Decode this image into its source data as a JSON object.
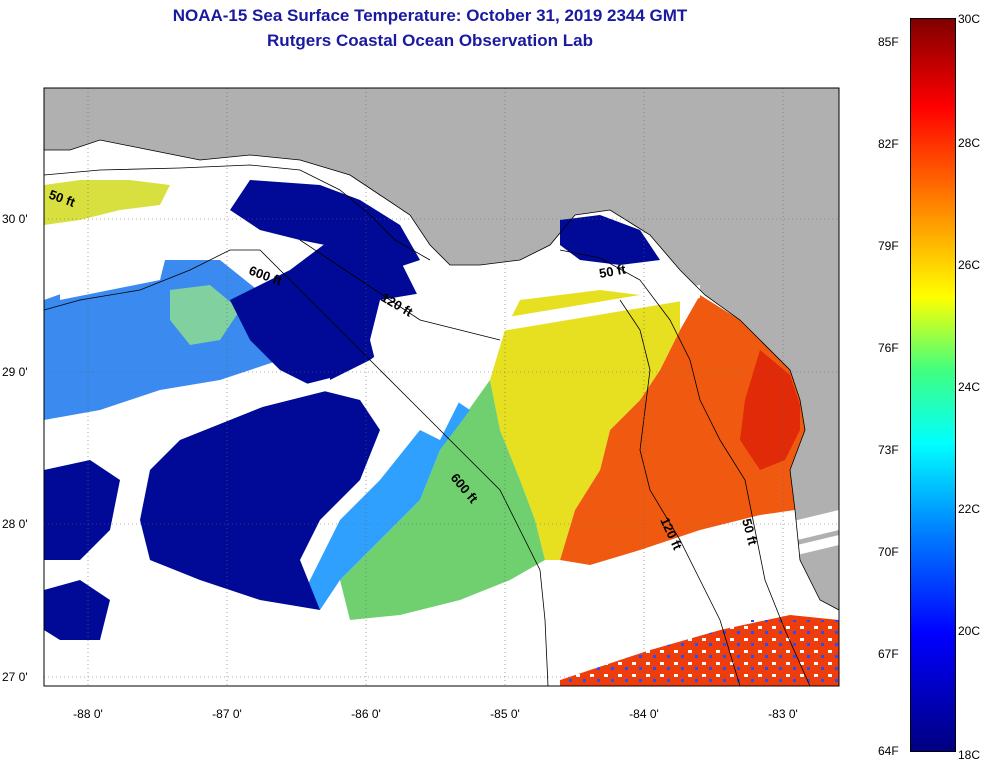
{
  "title": {
    "line1": "NOAA-15 Sea Surface Temperature:  October 31, 2019 2344 GMT",
    "line2": "Rutgers Coastal Ocean Observation Lab"
  },
  "axes": {
    "lat_labels": [
      "30 0'",
      "29 0'",
      "28 0'",
      "27 0'"
    ],
    "lon_labels": [
      "-88 0'",
      "-87 0'",
      "-86 0'",
      "-85 0'",
      "-84 0'",
      "-83 0'"
    ]
  },
  "contours": {
    "labels": [
      "50 ft",
      "600 ft",
      "120 ft",
      "50 ft",
      "600 ft",
      "120 ft",
      "50 ft"
    ]
  },
  "colorbar": {
    "fahrenheit": [
      "85F",
      "82F",
      "79F",
      "76F",
      "73F",
      "70F",
      "67F",
      "64F"
    ],
    "celsius": [
      "30C",
      "28C",
      "26C",
      "24C",
      "22C",
      "20C",
      "18C"
    ]
  },
  "colors": {
    "land": "#b0b0b0",
    "cloud_no_data": "#ffffff",
    "cold_water": "#000a96",
    "warm_water": "#f05010",
    "title_text": "#1a1aa0"
  }
}
